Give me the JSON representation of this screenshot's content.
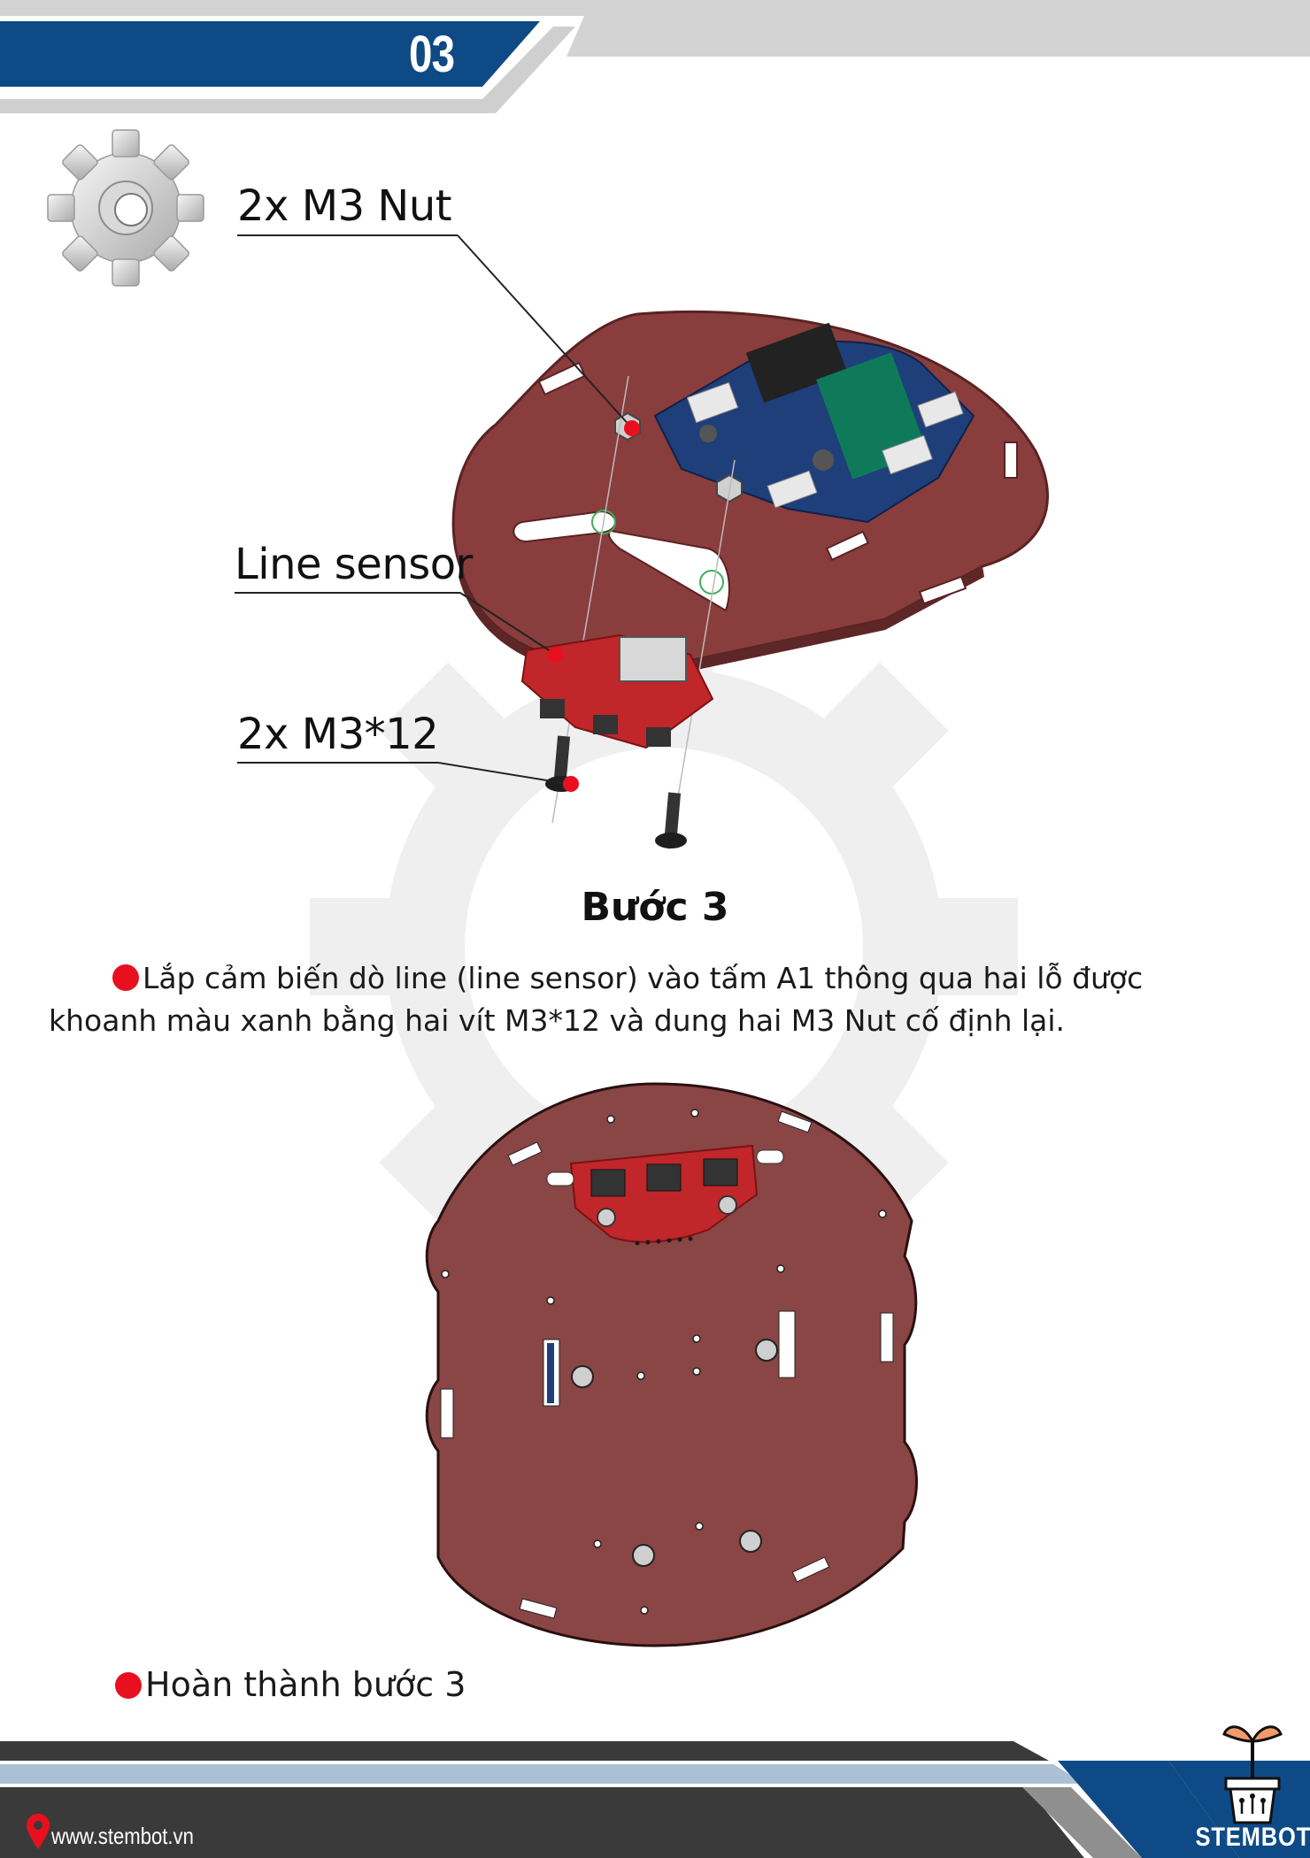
{
  "header": {
    "page_number": "03"
  },
  "callouts": {
    "nut": "2x M3 Nut",
    "sensor": "Line sensor",
    "screw": "2x M3*12"
  },
  "step": {
    "title": "Bước 3",
    "instruction_line1": "Lắp cảm biến dò line (line sensor) vào tấm A1 thông qua hai lỗ được",
    "instruction_line2": "khoanh màu xanh bằng hai vít M3*12 và dung hai M3 Nut cố định lại.",
    "complete_text": "Hoàn thành bước 3"
  },
  "footer": {
    "website": "www.stembot.vn",
    "brand": "STEMBOT"
  },
  "colors": {
    "header_blue": "#0e4a86",
    "plate_brown": "#8a3d3d",
    "sensor_red": "#c0262a",
    "bullet_red": "#e8101e",
    "footer_dark": "#3a3a3a"
  },
  "icons": [
    "gear-icon",
    "location-pin-icon",
    "plant-pot-logo-icon"
  ]
}
